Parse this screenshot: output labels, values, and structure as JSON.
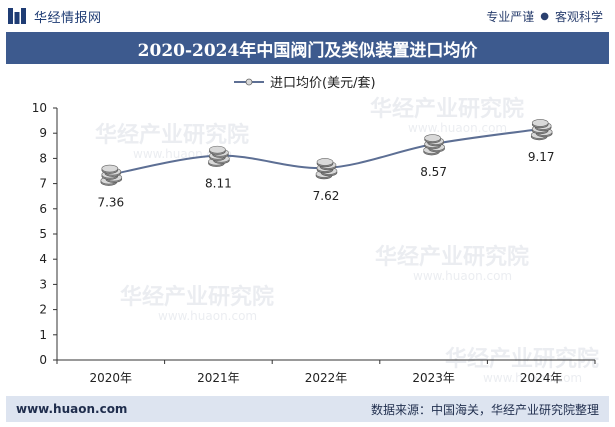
{
  "header": {
    "site_name": "华经情报网",
    "slogan_left": "专业严谨",
    "slogan_dot": "●",
    "slogan_right": "客观科学"
  },
  "title": "2020-2024年中国阀门及类似装置进口均价",
  "footer": {
    "url": "www.huaon.com",
    "source": "数据来源：中国海关，华经产业研究院整理"
  },
  "watermark": {
    "text": "华经产业研究院",
    "url": "www.huaon.com"
  },
  "colors": {
    "line": "#5d6f94",
    "title_bg": "#3d5a8e",
    "footer_bg": "#dde4f0"
  },
  "chart_data": {
    "type": "line",
    "categories": [
      "2020年",
      "2021年",
      "2022年",
      "2023年",
      "2024年"
    ],
    "series": [
      {
        "name": "进口均价(美元/套)",
        "values": [
          7.36,
          8.11,
          7.62,
          8.57,
          9.17
        ]
      }
    ],
    "data_labels": [
      "7.36",
      "8.11",
      "7.62",
      "8.57",
      "9.17"
    ],
    "ylim": [
      0,
      10
    ],
    "yticks": [
      0,
      1,
      2,
      3,
      4,
      5,
      6,
      7,
      8,
      9,
      10
    ],
    "legend_position": "top-center",
    "grid": false,
    "smooth": true,
    "marker": "coin-stack"
  }
}
